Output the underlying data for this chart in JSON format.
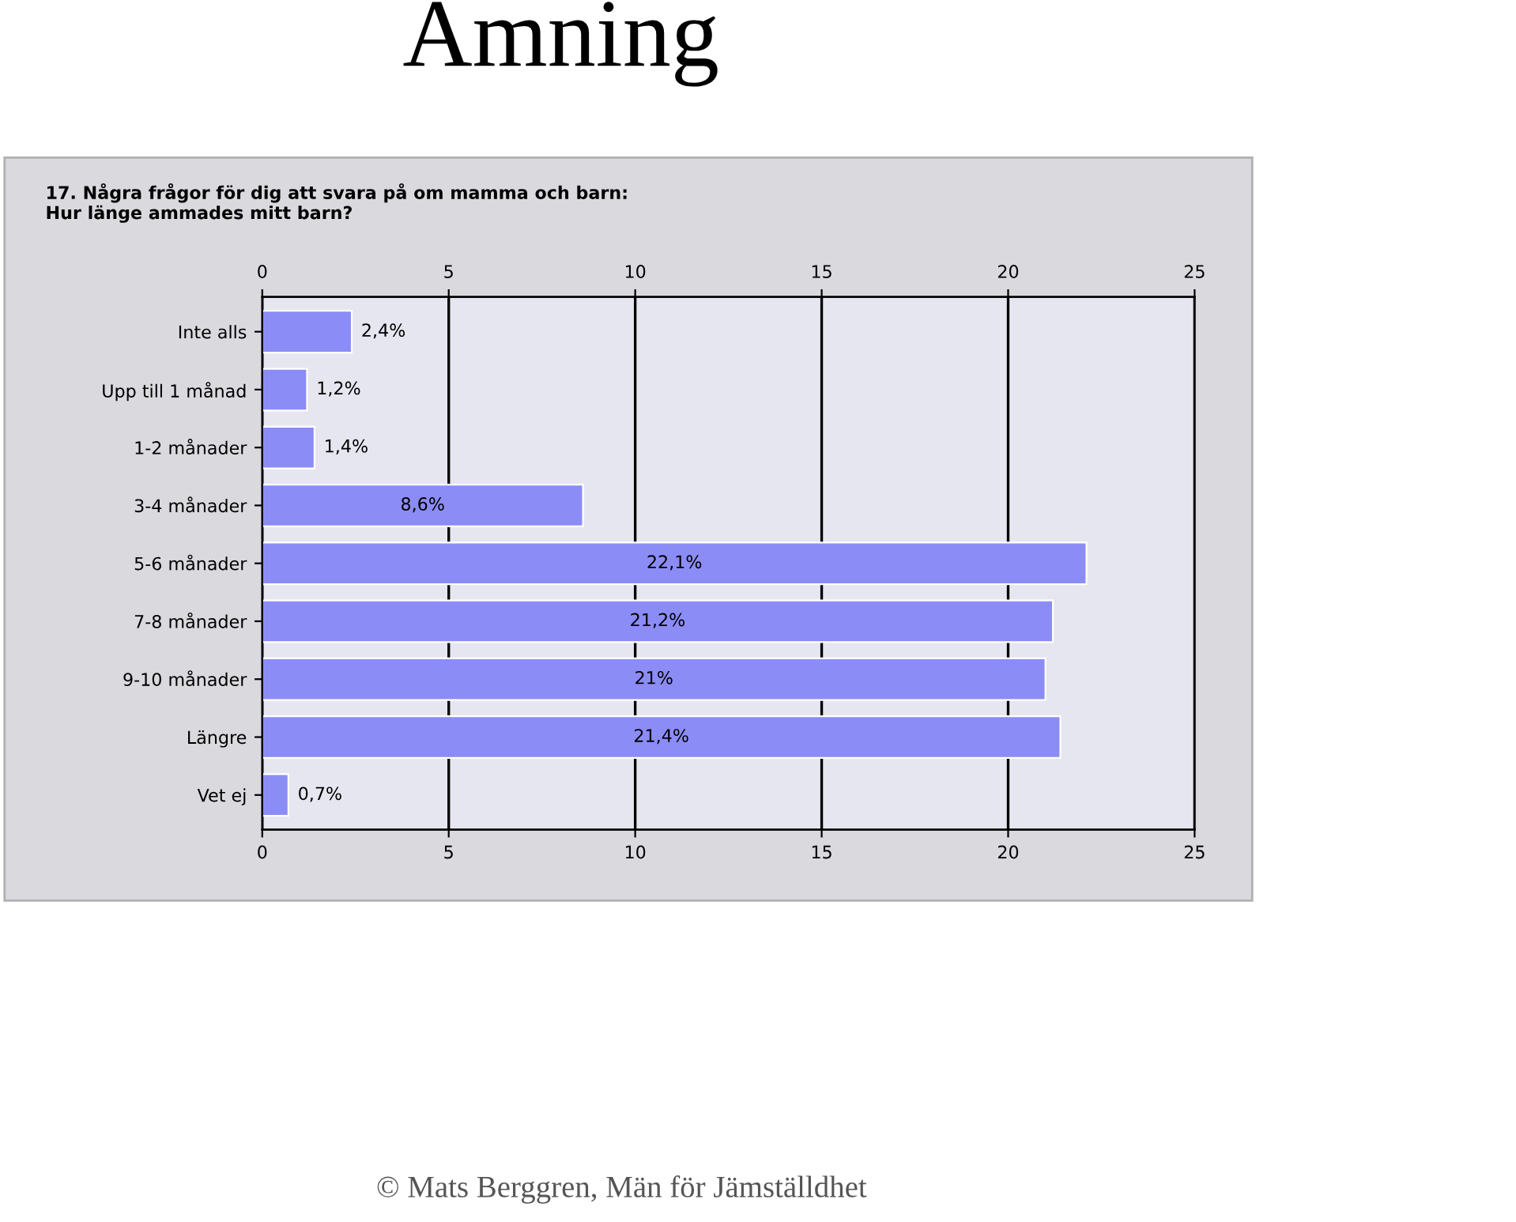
{
  "chart_data": {
    "type": "bar",
    "orientation": "horizontal",
    "title": "Amning",
    "subtitle": "17. Några frågor för dig att svara på om mamma och barn:\nHur länge ammades mitt barn?",
    "categories": [
      "Inte alls",
      "Upp till 1 månad",
      "1-2 månader",
      "3-4 månader",
      "5-6 månader",
      "7-8 månader",
      "9-10 månader",
      "Längre",
      "Vet ej"
    ],
    "values": [
      2.4,
      1.2,
      1.4,
      8.6,
      22.1,
      21.2,
      21,
      21.4,
      0.7
    ],
    "value_labels": [
      "2,4%",
      "1,2%",
      "1,4%",
      "8,6%",
      "22,1%",
      "21,2%",
      "21%",
      "21,4%",
      "0,7%"
    ],
    "color": "#8c8cf7",
    "xlim": [
      0,
      25
    ],
    "xticks": [
      0,
      5,
      10,
      15,
      20,
      25
    ],
    "x2lim": [
      0,
      25
    ],
    "x2ticks": [
      0,
      5,
      10,
      15,
      20,
      25
    ],
    "grid": "x",
    "legend": false,
    "annotations": [
      "© Mats Berggren, Män för Jämställdhet"
    ]
  }
}
